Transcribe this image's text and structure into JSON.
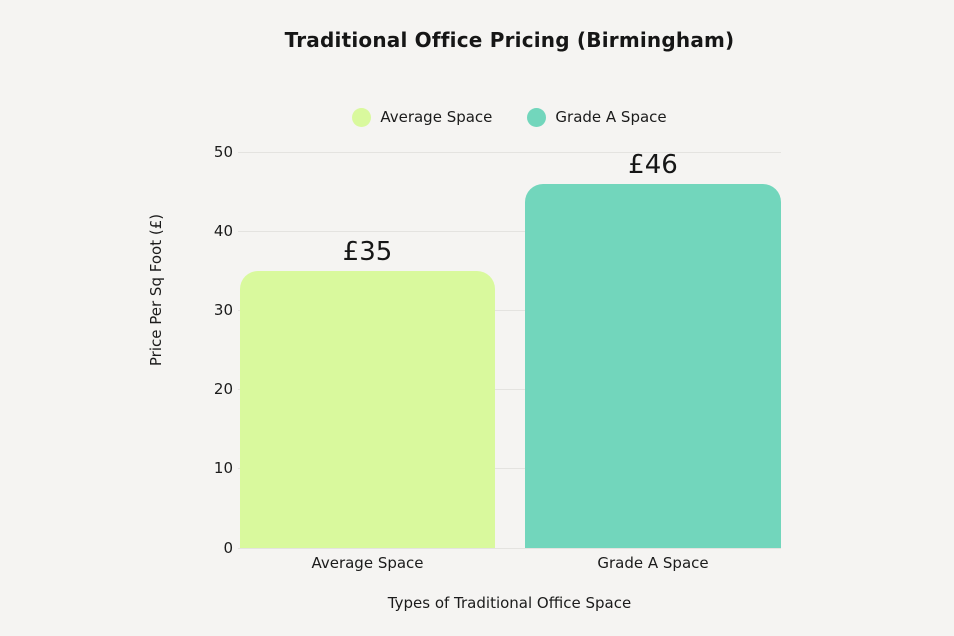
{
  "page": {
    "background_color": "#f5f4f2",
    "text_color": "#1b1b1b"
  },
  "chart_data": {
    "type": "bar",
    "title": "Traditional Office Pricing (Birmingham)",
    "xlabel": "Types of Traditional Office Space",
    "ylabel": "Price Per Sq Foot (£)",
    "categories": [
      "Average Space",
      "Grade A Space"
    ],
    "values": [
      35,
      46
    ],
    "value_labels": [
      "£35",
      "£46"
    ],
    "bar_colors": [
      "#d9f99d",
      "#72d6bc"
    ],
    "ylim": [
      0,
      50
    ],
    "yticks": [
      0,
      10,
      20,
      30,
      40,
      50
    ],
    "grid": true,
    "gridline_color": "#e4e3e0",
    "legend": {
      "position": "top",
      "items": [
        {
          "label": "Average Space",
          "color": "#d9f99d"
        },
        {
          "label": "Grade A Space",
          "color": "#72d6bc"
        }
      ]
    }
  }
}
